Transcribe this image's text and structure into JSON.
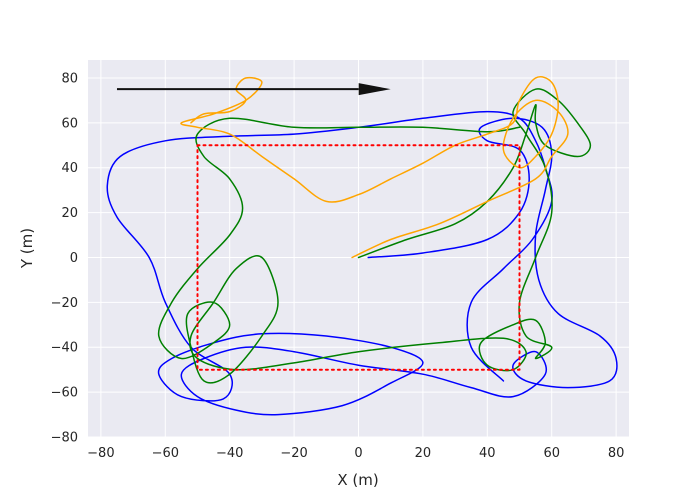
{
  "chart_data": {
    "type": "line",
    "title": "",
    "xlabel": "X (m)",
    "ylabel": "Y (m)",
    "xlim": [
      -84,
      84
    ],
    "ylim": [
      -80,
      88
    ],
    "xticks": [
      -80,
      -60,
      -40,
      -20,
      0,
      20,
      40,
      60,
      80
    ],
    "yticks": [
      -80,
      -60,
      -40,
      -20,
      0,
      20,
      40,
      60,
      80
    ],
    "xtick_labels": [
      "−80",
      "−60",
      "−40",
      "−20",
      "0",
      "20",
      "40",
      "60",
      "80"
    ],
    "ytick_labels": [
      "−80",
      "−60",
      "−40",
      "−20",
      "0",
      "20",
      "40",
      "60",
      "80"
    ],
    "grid": true,
    "background_color": "#eaeaf2",
    "arrow": {
      "x": [
        -75,
        10
      ],
      "y": [
        75,
        75
      ],
      "color": "#111111"
    },
    "series": [
      {
        "color": "#0000ff",
        "points": [
          [
            3,
            0
          ],
          [
            20,
            2
          ],
          [
            40,
            8
          ],
          [
            50,
            20
          ],
          [
            53,
            35
          ],
          [
            50,
            48
          ],
          [
            40,
            52
          ],
          [
            38,
            58
          ],
          [
            48,
            62
          ],
          [
            57,
            58
          ],
          [
            60,
            46
          ],
          [
            58,
            30
          ],
          [
            55,
            10
          ],
          [
            56,
            -10
          ],
          [
            62,
            -25
          ],
          [
            75,
            -35
          ],
          [
            80,
            -45
          ],
          [
            78,
            -55
          ],
          [
            65,
            -58
          ],
          [
            52,
            -55
          ],
          [
            48,
            -48
          ],
          [
            55,
            -42
          ],
          [
            58,
            -52
          ],
          [
            48,
            -62
          ],
          [
            35,
            -58
          ],
          [
            20,
            -52
          ],
          [
            0,
            -48
          ],
          [
            -20,
            -42
          ],
          [
            -35,
            -40
          ],
          [
            -48,
            -45
          ],
          [
            -55,
            -52
          ],
          [
            -50,
            -62
          ],
          [
            -38,
            -68
          ],
          [
            -25,
            -70
          ],
          [
            -5,
            -66
          ],
          [
            10,
            -56
          ],
          [
            20,
            -47
          ],
          [
            10,
            -40
          ],
          [
            -10,
            -35
          ],
          [
            -30,
            -34
          ],
          [
            -45,
            -38
          ],
          [
            -58,
            -45
          ],
          [
            -62,
            -52
          ],
          [
            -55,
            -62
          ],
          [
            -42,
            -63
          ],
          [
            -40,
            -52
          ],
          [
            -52,
            -40
          ],
          [
            -60,
            -20
          ],
          [
            -65,
            0
          ],
          [
            -75,
            18
          ],
          [
            -78,
            32
          ],
          [
            -74,
            45
          ],
          [
            -60,
            52
          ],
          [
            -40,
            54
          ],
          [
            -20,
            55
          ],
          [
            0,
            58
          ],
          [
            20,
            62
          ],
          [
            40,
            65
          ],
          [
            50,
            62
          ],
          [
            55,
            52
          ],
          [
            58,
            40
          ],
          [
            60,
            25
          ],
          [
            54,
            8
          ],
          [
            45,
            -5
          ],
          [
            35,
            -20
          ],
          [
            35,
            -40
          ],
          [
            45,
            -55
          ]
        ]
      },
      {
        "color": "#008000",
        "points": [
          [
            50,
            58
          ],
          [
            40,
            56
          ],
          [
            20,
            58
          ],
          [
            0,
            58
          ],
          [
            -20,
            58
          ],
          [
            -40,
            62
          ],
          [
            -50,
            55
          ],
          [
            -48,
            45
          ],
          [
            -40,
            35
          ],
          [
            -36,
            22
          ],
          [
            -40,
            10
          ],
          [
            -50,
            -5
          ],
          [
            -58,
            -20
          ],
          [
            -62,
            -35
          ],
          [
            -55,
            -45
          ],
          [
            -45,
            -38
          ],
          [
            -40,
            -30
          ],
          [
            -45,
            -20
          ],
          [
            -53,
            -25
          ],
          [
            -52,
            -40
          ],
          [
            -48,
            -55
          ],
          [
            -40,
            -52
          ],
          [
            -30,
            -35
          ],
          [
            -25,
            -20
          ],
          [
            -30,
            0
          ],
          [
            -38,
            -5
          ],
          [
            -45,
            -20
          ],
          [
            -52,
            -35
          ],
          [
            -50,
            -45
          ],
          [
            -38,
            -50
          ],
          [
            -20,
            -47
          ],
          [
            0,
            -42
          ],
          [
            25,
            -38
          ],
          [
            45,
            -36
          ],
          [
            52,
            -42
          ],
          [
            48,
            -50
          ],
          [
            40,
            -48
          ],
          [
            38,
            -38
          ],
          [
            48,
            -30
          ],
          [
            55,
            -28
          ],
          [
            58,
            -38
          ],
          [
            55,
            -45
          ],
          [
            60,
            -40
          ],
          [
            52,
            -35
          ],
          [
            50,
            -20
          ],
          [
            55,
            0
          ],
          [
            60,
            20
          ],
          [
            58,
            40
          ],
          [
            52,
            55
          ],
          [
            48,
            65
          ],
          [
            55,
            75
          ],
          [
            62,
            70
          ],
          [
            68,
            60
          ],
          [
            72,
            50
          ],
          [
            68,
            45
          ],
          [
            58,
            50
          ],
          [
            55,
            60
          ],
          [
            55,
            68
          ],
          [
            52,
            55
          ],
          [
            48,
            40
          ],
          [
            40,
            25
          ],
          [
            30,
            15
          ],
          [
            15,
            8
          ],
          [
            0,
            0
          ]
        ]
      },
      {
        "color": "#ffa500",
        "points": [
          [
            -2,
            0
          ],
          [
            10,
            8
          ],
          [
            25,
            15
          ],
          [
            40,
            25
          ],
          [
            55,
            35
          ],
          [
            60,
            45
          ],
          [
            65,
            55
          ],
          [
            62,
            65
          ],
          [
            55,
            70
          ],
          [
            48,
            62
          ],
          [
            45,
            48
          ],
          [
            50,
            40
          ],
          [
            55,
            45
          ],
          [
            60,
            55
          ],
          [
            62,
            68
          ],
          [
            60,
            78
          ],
          [
            55,
            80
          ],
          [
            50,
            70
          ],
          [
            48,
            60
          ],
          [
            40,
            55
          ],
          [
            30,
            50
          ],
          [
            20,
            42
          ],
          [
            10,
            35
          ],
          [
            0,
            28
          ],
          [
            -10,
            25
          ],
          [
            -20,
            35
          ],
          [
            -30,
            45
          ],
          [
            -40,
            55
          ],
          [
            -50,
            58
          ],
          [
            -55,
            60
          ],
          [
            -45,
            64
          ],
          [
            -35,
            70
          ],
          [
            -30,
            78
          ],
          [
            -35,
            80
          ],
          [
            -38,
            75
          ],
          [
            -35,
            70
          ],
          [
            -40,
            65
          ],
          [
            -48,
            64
          ],
          [
            -52,
            60
          ]
        ]
      },
      {
        "color": "#ff0000",
        "dashed": true,
        "points": [
          [
            -50,
            50
          ],
          [
            50,
            50
          ],
          [
            50,
            -50
          ],
          [
            -50,
            -50
          ],
          [
            -50,
            50
          ]
        ]
      }
    ]
  }
}
